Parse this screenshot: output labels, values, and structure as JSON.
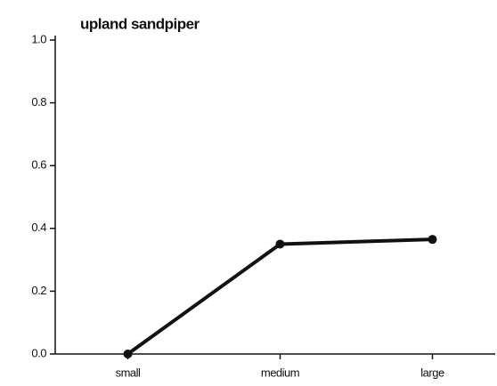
{
  "chart_data": {
    "type": "line",
    "title": "upland sandpiper",
    "categories": [
      "small",
      "medium",
      "large"
    ],
    "series": [
      {
        "color": "#111111",
        "values": [
          0,
          0.35,
          0.365
        ]
      }
    ],
    "ylim": [
      0,
      1
    ],
    "yticks": [
      {
        "value": 0,
        "label": "0.0"
      },
      0.2,
      0.4,
      0.6,
      0.8,
      {
        "value": 1,
        "label": "1.0"
      }
    ]
  }
}
